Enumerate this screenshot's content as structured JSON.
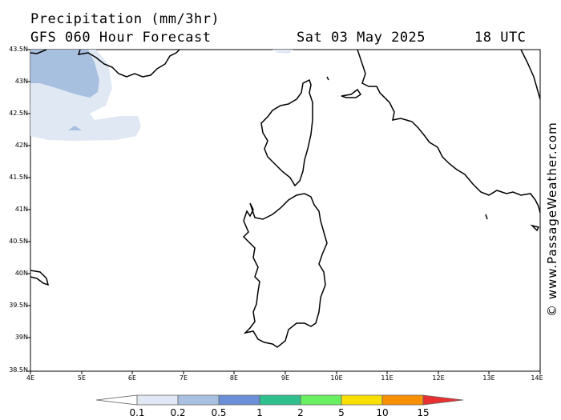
{
  "header": {
    "title": "Precipitation (mm/3hr)",
    "subtitle": "GFS 060 Hour Forecast",
    "valid_date": "Sat 03 May 2025",
    "valid_time": "18 UTC"
  },
  "credit": "© www.PassageWeather.com",
  "map": {
    "lat_labels": [
      "43.5N",
      "43N",
      "42.5N",
      "42N",
      "41.5N",
      "41N",
      "40.5N",
      "40N",
      "39.5N",
      "39N",
      "38.5N"
    ],
    "lon_labels": [
      "4E",
      "5E",
      "6E",
      "7E",
      "8E",
      "9E",
      "10E",
      "11E",
      "12E",
      "13E",
      "14E"
    ],
    "land_color": "#ffffff",
    "coast_color": "#000000"
  },
  "legend": {
    "labels": [
      "0.1",
      "0.2",
      "0.5",
      "1",
      "2",
      "5",
      "10",
      "15"
    ],
    "colors": [
      "#ffffff",
      "#e0e8f4",
      "#a8c0e0",
      "#6a8ed8",
      "#30c090",
      "#68f060",
      "#f8e000",
      "#f89000",
      "#e83030"
    ]
  }
}
